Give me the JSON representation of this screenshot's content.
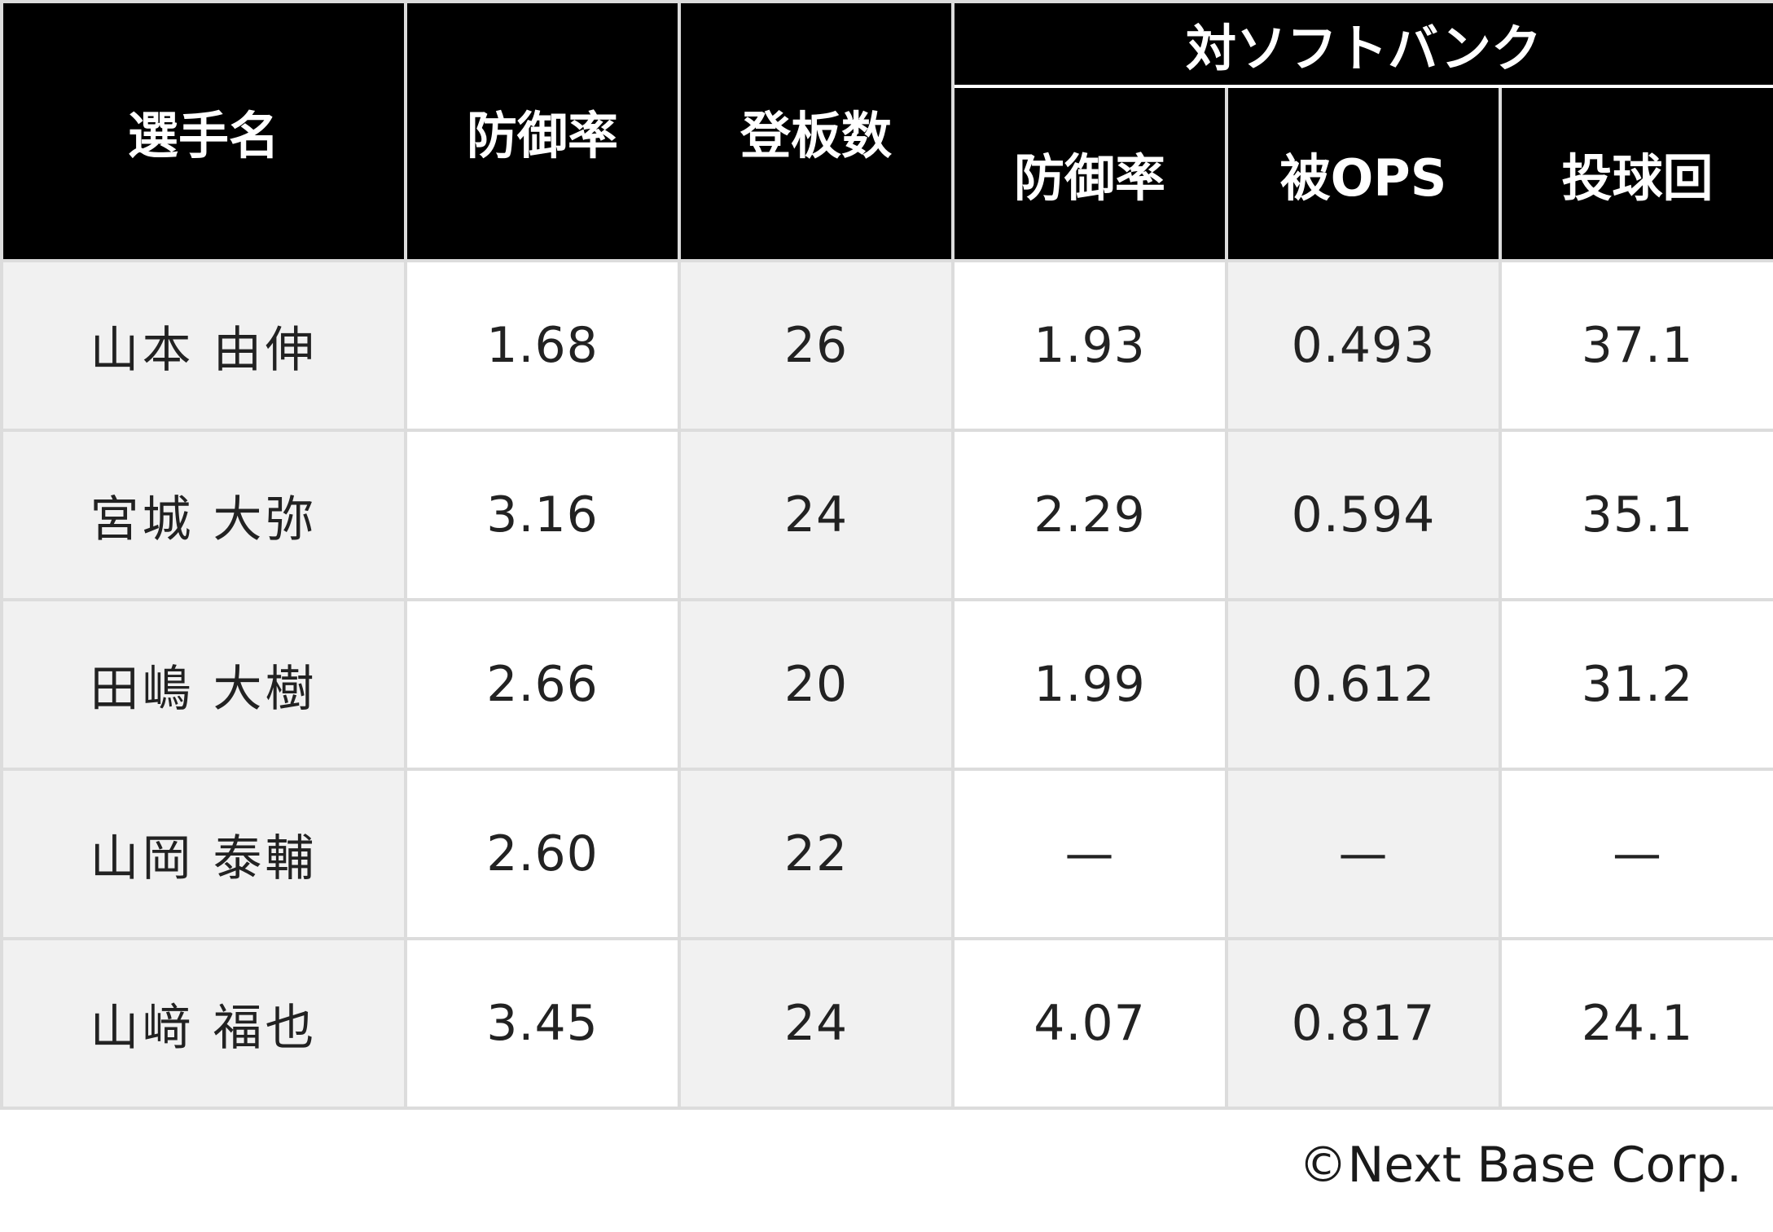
{
  "header": {
    "player": "選手名",
    "era": "防御率",
    "games": "登板数",
    "vs_group": "対ソフトバンク",
    "vs_era": "防御率",
    "vs_ops": "被OPS",
    "vs_innings": "投球回"
  },
  "rows": [
    {
      "name": "山本 由伸",
      "era": "1.68",
      "games": "26",
      "vs_era": "1.93",
      "vs_ops": "0.493",
      "vs_innings": "37.1"
    },
    {
      "name": "宮城 大弥",
      "era": "3.16",
      "games": "24",
      "vs_era": "2.29",
      "vs_ops": "0.594",
      "vs_innings": "35.1"
    },
    {
      "name": "田嶋 大樹",
      "era": "2.66",
      "games": "20",
      "vs_era": "1.99",
      "vs_ops": "0.612",
      "vs_innings": "31.2"
    },
    {
      "name": "山岡 泰輔",
      "era": "2.60",
      "games": "22",
      "vs_era": "—",
      "vs_ops": "—",
      "vs_innings": "—"
    },
    {
      "name": "山﨑 福也",
      "era": "3.45",
      "games": "24",
      "vs_era": "4.07",
      "vs_ops": "0.817",
      "vs_innings": "24.1"
    }
  ],
  "copyright": "©Next Base Corp.",
  "colors": {
    "header_bg": "#000000",
    "header_text": "#ffffff",
    "shade": "#f1f1f1",
    "grid": "#dcdcdc"
  }
}
